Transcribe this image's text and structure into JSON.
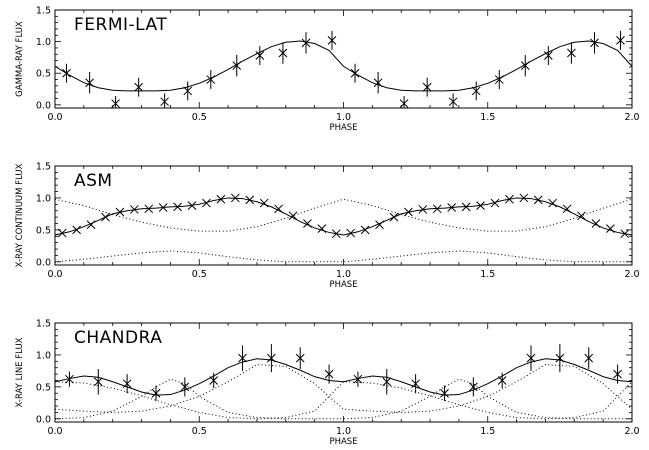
{
  "chart_data": [
    {
      "type": "scatter",
      "title": "FERMI-LAT",
      "xlabel": "PHASE",
      "ylabel": "GAMMA-RAY FLUX",
      "xlim": [
        0.0,
        2.0
      ],
      "ylim": [
        -0.05,
        1.5
      ],
      "x_ticks": [
        "0.0",
        "0.5",
        "1.0",
        "1.5",
        "2.0"
      ],
      "y_ticks": [
        "0.0",
        "0.5",
        "1.0",
        "1.5"
      ],
      "grid": false,
      "series": [
        {
          "kind": "points_with_errorbars",
          "x": [
            0.04,
            0.12,
            0.21,
            0.29,
            0.38,
            0.46,
            0.54,
            0.63,
            0.71,
            0.79,
            0.87,
            0.96,
            1.04,
            1.12,
            1.21,
            1.29,
            1.38,
            1.46,
            1.54,
            1.63,
            1.71,
            1.79,
            1.87,
            1.96
          ],
          "y": [
            0.5,
            0.35,
            0.02,
            0.28,
            0.05,
            0.22,
            0.4,
            0.62,
            0.78,
            0.82,
            0.98,
            1.02,
            0.5,
            0.35,
            0.02,
            0.28,
            0.05,
            0.22,
            0.4,
            0.62,
            0.78,
            0.82,
            0.98,
            1.02
          ],
          "yerr": [
            0.15,
            0.17,
            0.12,
            0.15,
            0.13,
            0.15,
            0.15,
            0.17,
            0.15,
            0.17,
            0.17,
            0.15,
            0.15,
            0.17,
            0.12,
            0.15,
            0.13,
            0.15,
            0.15,
            0.17,
            0.15,
            0.17,
            0.17,
            0.15
          ]
        },
        {
          "kind": "model_curve",
          "style": "solid",
          "x": [
            0.0,
            0.05,
            0.1,
            0.15,
            0.2,
            0.25,
            0.3,
            0.35,
            0.4,
            0.45,
            0.5,
            0.55,
            0.6,
            0.65,
            0.7,
            0.75,
            0.8,
            0.85,
            0.9,
            0.95,
            1.0,
            1.05,
            1.1,
            1.15,
            1.2,
            1.25,
            1.3,
            1.35,
            1.4,
            1.45,
            1.5,
            1.55,
            1.6,
            1.65,
            1.7,
            1.75,
            1.8,
            1.85,
            1.9,
            1.95,
            2.0
          ],
          "y": [
            0.61,
            0.47,
            0.35,
            0.27,
            0.23,
            0.22,
            0.22,
            0.22,
            0.23,
            0.27,
            0.34,
            0.44,
            0.56,
            0.69,
            0.81,
            0.92,
            0.99,
            1.01,
            0.97,
            0.86,
            0.61,
            0.47,
            0.35,
            0.27,
            0.23,
            0.22,
            0.22,
            0.22,
            0.23,
            0.27,
            0.34,
            0.44,
            0.56,
            0.69,
            0.81,
            0.92,
            0.99,
            1.01,
            0.97,
            0.86,
            0.61
          ]
        }
      ]
    },
    {
      "type": "scatter",
      "title": "ASM",
      "xlabel": "PHASE",
      "ylabel": "X-RAY CONTINUUM FLUX",
      "xlim": [
        0.0,
        2.0
      ],
      "ylim": [
        -0.05,
        1.5
      ],
      "x_ticks": [
        "0.0",
        "0.5",
        "1.0",
        "1.5",
        "2.0"
      ],
      "y_ticks": [
        "0.0",
        "0.5",
        "1.0",
        "1.5"
      ],
      "grid": false,
      "series": [
        {
          "kind": "points",
          "x": [
            0.025,
            0.075,
            0.125,
            0.175,
            0.225,
            0.275,
            0.325,
            0.375,
            0.425,
            0.475,
            0.525,
            0.575,
            0.625,
            0.675,
            0.725,
            0.775,
            0.825,
            0.875,
            0.925,
            0.975,
            1.025,
            1.075,
            1.125,
            1.175,
            1.225,
            1.275,
            1.325,
            1.375,
            1.425,
            1.475,
            1.525,
            1.575,
            1.625,
            1.675,
            1.725,
            1.775,
            1.825,
            1.875,
            1.925,
            1.975
          ],
          "y": [
            0.45,
            0.5,
            0.58,
            0.7,
            0.78,
            0.82,
            0.83,
            0.85,
            0.86,
            0.88,
            0.92,
            0.98,
            1.0,
            0.97,
            0.92,
            0.83,
            0.72,
            0.6,
            0.52,
            0.44,
            0.45,
            0.5,
            0.58,
            0.7,
            0.78,
            0.82,
            0.83,
            0.85,
            0.86,
            0.88,
            0.92,
            0.98,
            1.0,
            0.97,
            0.92,
            0.83,
            0.72,
            0.6,
            0.52,
            0.44
          ]
        },
        {
          "kind": "model_curve",
          "style": "solid",
          "x": [
            0.0,
            0.05,
            0.1,
            0.15,
            0.2,
            0.25,
            0.3,
            0.35,
            0.4,
            0.45,
            0.5,
            0.55,
            0.6,
            0.65,
            0.7,
            0.75,
            0.8,
            0.85,
            0.9,
            0.95,
            1.0,
            1.05,
            1.1,
            1.15,
            1.2,
            1.25,
            1.3,
            1.35,
            1.4,
            1.45,
            1.5,
            1.55,
            1.6,
            1.65,
            1.7,
            1.75,
            1.8,
            1.85,
            1.9,
            1.95,
            2.0
          ],
          "y": [
            0.42,
            0.47,
            0.55,
            0.65,
            0.75,
            0.8,
            0.83,
            0.84,
            0.86,
            0.87,
            0.9,
            0.96,
            1.0,
            0.99,
            0.94,
            0.86,
            0.75,
            0.63,
            0.53,
            0.46,
            0.42,
            0.47,
            0.55,
            0.65,
            0.75,
            0.8,
            0.83,
            0.84,
            0.86,
            0.87,
            0.9,
            0.96,
            1.0,
            0.99,
            0.94,
            0.86,
            0.75,
            0.63,
            0.53,
            0.46,
            0.42
          ]
        },
        {
          "kind": "component",
          "style": "dotted",
          "x": [
            0.0,
            0.1,
            0.2,
            0.3,
            0.4,
            0.5,
            0.6,
            0.7,
            0.8,
            0.9,
            1.0,
            1.1,
            1.2,
            1.3,
            1.4,
            1.5,
            1.6,
            1.7,
            1.8,
            1.9,
            2.0
          ],
          "y": [
            0.98,
            0.88,
            0.74,
            0.62,
            0.53,
            0.48,
            0.48,
            0.55,
            0.68,
            0.84,
            0.98,
            0.88,
            0.74,
            0.62,
            0.53,
            0.48,
            0.48,
            0.55,
            0.68,
            0.84,
            0.98
          ]
        },
        {
          "kind": "component",
          "style": "dotted",
          "x": [
            0.0,
            0.1,
            0.2,
            0.3,
            0.4,
            0.5,
            0.6,
            0.7,
            0.8,
            0.9,
            1.0,
            1.1,
            1.2,
            1.3,
            1.4,
            1.5,
            1.6,
            1.7,
            1.8,
            1.9,
            2.0
          ],
          "y": [
            0.0,
            0.04,
            0.09,
            0.14,
            0.17,
            0.14,
            0.08,
            0.03,
            0.0,
            0.0,
            0.0,
            0.04,
            0.09,
            0.14,
            0.17,
            0.14,
            0.08,
            0.03,
            0.0,
            0.0,
            0.0
          ]
        }
      ]
    },
    {
      "type": "scatter",
      "title": "CHANDRA",
      "xlabel": "PHASE",
      "ylabel": "X-RAY LINE FLUX",
      "xlim": [
        0.0,
        2.0
      ],
      "ylim": [
        -0.05,
        1.5
      ],
      "x_ticks": [
        "0.0",
        "0.5",
        "1.0",
        "1.5",
        "2.0"
      ],
      "y_ticks": [
        "0.0",
        "0.5",
        "1.0",
        "1.5"
      ],
      "grid": false,
      "series": [
        {
          "kind": "points_with_errorbars",
          "x": [
            0.05,
            0.15,
            0.25,
            0.35,
            0.45,
            0.55,
            0.65,
            0.75,
            0.85,
            0.95,
            1.05,
            1.15,
            1.25,
            1.35,
            1.45,
            1.55,
            1.65,
            1.75,
            1.85,
            1.95
          ],
          "y": [
            0.62,
            0.58,
            0.55,
            0.4,
            0.5,
            0.6,
            0.95,
            0.95,
            0.95,
            0.7,
            0.62,
            0.58,
            0.55,
            0.4,
            0.5,
            0.6,
            0.95,
            0.95,
            0.95,
            0.7
          ],
          "yerr": [
            0.12,
            0.2,
            0.15,
            0.12,
            0.15,
            0.12,
            0.2,
            0.22,
            0.17,
            0.15,
            0.12,
            0.2,
            0.15,
            0.12,
            0.15,
            0.12,
            0.2,
            0.22,
            0.17,
            0.15
          ]
        },
        {
          "kind": "model_curve",
          "style": "solid",
          "x": [
            0.0,
            0.05,
            0.1,
            0.15,
            0.2,
            0.25,
            0.3,
            0.35,
            0.4,
            0.45,
            0.5,
            0.55,
            0.6,
            0.65,
            0.7,
            0.75,
            0.8,
            0.85,
            0.9,
            0.95,
            1.0,
            1.05,
            1.1,
            1.15,
            1.2,
            1.25,
            1.3,
            1.35,
            1.4,
            1.45,
            1.5,
            1.55,
            1.6,
            1.65,
            1.7,
            1.75,
            1.8,
            1.85,
            1.9,
            1.95,
            2.0
          ],
          "y": [
            0.58,
            0.63,
            0.67,
            0.65,
            0.58,
            0.5,
            0.42,
            0.37,
            0.38,
            0.45,
            0.55,
            0.67,
            0.8,
            0.89,
            0.94,
            0.92,
            0.85,
            0.76,
            0.66,
            0.6,
            0.58,
            0.63,
            0.67,
            0.65,
            0.58,
            0.5,
            0.42,
            0.37,
            0.38,
            0.45,
            0.55,
            0.67,
            0.8,
            0.89,
            0.94,
            0.92,
            0.85,
            0.76,
            0.66,
            0.6,
            0.58
          ]
        },
        {
          "kind": "component",
          "style": "dotted",
          "x": [
            0.0,
            0.1,
            0.2,
            0.3,
            0.4,
            0.5,
            0.6,
            0.7,
            0.8,
            0.9,
            1.0,
            1.1,
            1.2,
            1.3,
            1.4,
            1.5,
            1.6,
            1.7,
            1.8,
            1.9,
            2.0
          ],
          "y": [
            0.58,
            0.56,
            0.48,
            0.36,
            0.22,
            0.1,
            0.02,
            0.0,
            0.02,
            0.12,
            0.58,
            0.56,
            0.48,
            0.36,
            0.22,
            0.1,
            0.02,
            0.0,
            0.02,
            0.12,
            0.58
          ]
        },
        {
          "kind": "component",
          "style": "dotted",
          "x": [
            0.0,
            0.1,
            0.2,
            0.3,
            0.35,
            0.4,
            0.45,
            0.5,
            0.6,
            0.7,
            0.8,
            0.9,
            1.0,
            1.1,
            1.2,
            1.3,
            1.35,
            1.4,
            1.45,
            1.5,
            1.6,
            1.7,
            1.8,
            1.9,
            2.0
          ],
          "y": [
            0.0,
            0.02,
            0.12,
            0.35,
            0.5,
            0.62,
            0.55,
            0.35,
            0.1,
            0.02,
            0.0,
            0.0,
            0.0,
            0.02,
            0.12,
            0.35,
            0.5,
            0.62,
            0.55,
            0.35,
            0.1,
            0.02,
            0.0,
            0.0,
            0.0
          ]
        },
        {
          "kind": "component",
          "style": "dotted",
          "x": [
            0.0,
            0.1,
            0.2,
            0.3,
            0.4,
            0.5,
            0.6,
            0.7,
            0.8,
            0.9,
            1.0,
            1.1,
            1.2,
            1.3,
            1.4,
            1.5,
            1.6,
            1.7,
            1.8,
            1.9,
            2.0
          ],
          "y": [
            0.15,
            0.12,
            0.1,
            0.12,
            0.2,
            0.35,
            0.58,
            0.85,
            0.82,
            0.55,
            0.15,
            0.12,
            0.1,
            0.12,
            0.2,
            0.35,
            0.58,
            0.85,
            0.82,
            0.55,
            0.15
          ]
        }
      ]
    }
  ]
}
